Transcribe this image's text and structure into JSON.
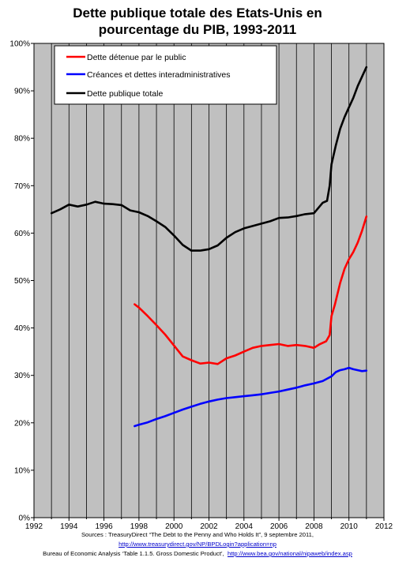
{
  "chart_data": {
    "type": "line",
    "title": [
      "Dette publique totale des Etats-Unis en",
      "pourcentage du PIB, 1993-2011"
    ],
    "xlabel": "",
    "ylabel": "",
    "xlim": [
      1992,
      2012
    ],
    "ylim": [
      0,
      100
    ],
    "x_ticks": [
      "1992",
      "1994",
      "1996",
      "1998",
      "2000",
      "2002",
      "2004",
      "2006",
      "2008",
      "2010",
      "2012"
    ],
    "y_ticks": [
      "0%",
      "10%",
      "20%",
      "30%",
      "40%",
      "50%",
      "60%",
      "70%",
      "80%",
      "90%",
      "100%"
    ],
    "grid": "vertical",
    "plot_background": "#c0c0c0",
    "legend_position": "top-left",
    "series": [
      {
        "name": "Dette détenue par le public",
        "color": "#ff0000",
        "points": [
          [
            1997.75,
            45.0
          ],
          [
            1998.0,
            44.3
          ],
          [
            1998.5,
            42.5
          ],
          [
            1999.0,
            40.6
          ],
          [
            1999.5,
            38.6
          ],
          [
            2000.0,
            36.3
          ],
          [
            2000.5,
            34.0
          ],
          [
            2001.0,
            33.2
          ],
          [
            2001.5,
            32.5
          ],
          [
            2002.0,
            32.7
          ],
          [
            2002.5,
            32.4
          ],
          [
            2003.0,
            33.6
          ],
          [
            2003.5,
            34.2
          ],
          [
            2004.0,
            35.0
          ],
          [
            2004.5,
            35.8
          ],
          [
            2005.0,
            36.2
          ],
          [
            2005.5,
            36.4
          ],
          [
            2006.0,
            36.6
          ],
          [
            2006.5,
            36.2
          ],
          [
            2007.0,
            36.4
          ],
          [
            2007.5,
            36.2
          ],
          [
            2008.0,
            35.8
          ],
          [
            2008.3,
            36.5
          ],
          [
            2008.7,
            37.2
          ],
          [
            2008.9,
            38.5
          ],
          [
            2009.0,
            42.5
          ],
          [
            2009.2,
            45.0
          ],
          [
            2009.5,
            49.5
          ],
          [
            2009.75,
            52.5
          ],
          [
            2010.0,
            54.5
          ],
          [
            2010.25,
            56.0
          ],
          [
            2010.5,
            58.0
          ],
          [
            2010.75,
            60.5
          ],
          [
            2011.0,
            63.5
          ]
        ]
      },
      {
        "name": "Créances et dettes interadministratives",
        "color": "#0000ff",
        "points": [
          [
            1997.75,
            19.3
          ],
          [
            1998.0,
            19.6
          ],
          [
            1998.5,
            20.1
          ],
          [
            1999.0,
            20.8
          ],
          [
            1999.5,
            21.4
          ],
          [
            2000.0,
            22.1
          ],
          [
            2000.5,
            22.8
          ],
          [
            2001.0,
            23.4
          ],
          [
            2001.5,
            24.0
          ],
          [
            2002.0,
            24.5
          ],
          [
            2002.5,
            24.9
          ],
          [
            2003.0,
            25.2
          ],
          [
            2003.5,
            25.4
          ],
          [
            2004.0,
            25.6
          ],
          [
            2004.5,
            25.8
          ],
          [
            2005.0,
            26.0
          ],
          [
            2005.5,
            26.3
          ],
          [
            2006.0,
            26.6
          ],
          [
            2006.5,
            27.0
          ],
          [
            2007.0,
            27.4
          ],
          [
            2007.5,
            27.9
          ],
          [
            2008.0,
            28.3
          ],
          [
            2008.5,
            28.8
          ],
          [
            2009.0,
            29.8
          ],
          [
            2009.25,
            30.7
          ],
          [
            2009.5,
            31.1
          ],
          [
            2009.75,
            31.3
          ],
          [
            2010.0,
            31.6
          ],
          [
            2010.25,
            31.3
          ],
          [
            2010.5,
            31.1
          ],
          [
            2010.75,
            30.9
          ],
          [
            2011.0,
            31.0
          ]
        ]
      },
      {
        "name": "Dette publique totale",
        "color": "#000000",
        "points": [
          [
            1993.0,
            64.2
          ],
          [
            1993.5,
            65.0
          ],
          [
            1994.0,
            66.0
          ],
          [
            1994.5,
            65.6
          ],
          [
            1995.0,
            66.0
          ],
          [
            1995.5,
            66.6
          ],
          [
            1996.0,
            66.2
          ],
          [
            1996.5,
            66.1
          ],
          [
            1997.0,
            65.9
          ],
          [
            1997.5,
            64.8
          ],
          [
            1998.0,
            64.4
          ],
          [
            1998.5,
            63.6
          ],
          [
            1999.0,
            62.5
          ],
          [
            1999.5,
            61.3
          ],
          [
            2000.0,
            59.5
          ],
          [
            2000.5,
            57.5
          ],
          [
            2001.0,
            56.3
          ],
          [
            2001.5,
            56.3
          ],
          [
            2002.0,
            56.6
          ],
          [
            2002.5,
            57.4
          ],
          [
            2003.0,
            59.0
          ],
          [
            2003.5,
            60.2
          ],
          [
            2004.0,
            61.0
          ],
          [
            2004.5,
            61.5
          ],
          [
            2005.0,
            62.0
          ],
          [
            2005.5,
            62.5
          ],
          [
            2006.0,
            63.2
          ],
          [
            2006.5,
            63.3
          ],
          [
            2007.0,
            63.6
          ],
          [
            2007.5,
            64.0
          ],
          [
            2008.0,
            64.2
          ],
          [
            2008.5,
            66.4
          ],
          [
            2008.75,
            66.8
          ],
          [
            2008.9,
            70.0
          ],
          [
            2009.0,
            74.5
          ],
          [
            2009.25,
            78.5
          ],
          [
            2009.5,
            82.0
          ],
          [
            2009.75,
            84.5
          ],
          [
            2010.0,
            86.5
          ],
          [
            2010.25,
            88.5
          ],
          [
            2010.5,
            91.0
          ],
          [
            2010.75,
            93.0
          ],
          [
            2011.0,
            95.0
          ]
        ]
      }
    ]
  },
  "sources": {
    "line1": "Sources : TreasuryDirect “The Debt to the Penny and Who Holds It”, 9 septembre 2011,",
    "link1": "http://www.treasurydirect.gov/NP/BPDLogin?application=np",
    "line3_text": "Bureau of Economic Analysis ‘Table 1.1.5. Gross Domestic Product’,",
    "link2": "http://www.bea.gov/national/nipaweb/index.asp"
  }
}
